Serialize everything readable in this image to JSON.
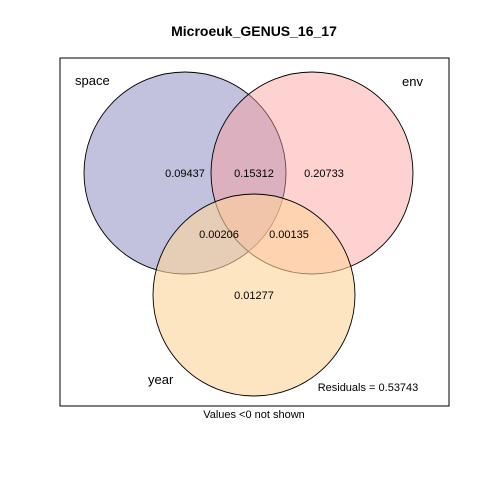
{
  "title": "Microeuk_GENUS_16_17",
  "sets": [
    {
      "key": "space",
      "label": "space",
      "color": "#8585BD"
    },
    {
      "key": "env",
      "label": "env",
      "color": "#FF9C9C"
    },
    {
      "key": "year",
      "label": "year",
      "color": "#FDD39A"
    }
  ],
  "regions": {
    "space_only": "0.09437",
    "space_env": "0.15312",
    "env_only": "0.20733",
    "space_year": "0.00206",
    "env_year": "0.00135",
    "year_only": "0.01277"
  },
  "residuals_text": "Residuals = 0.53743",
  "footnote": "Values <0 not shown"
}
